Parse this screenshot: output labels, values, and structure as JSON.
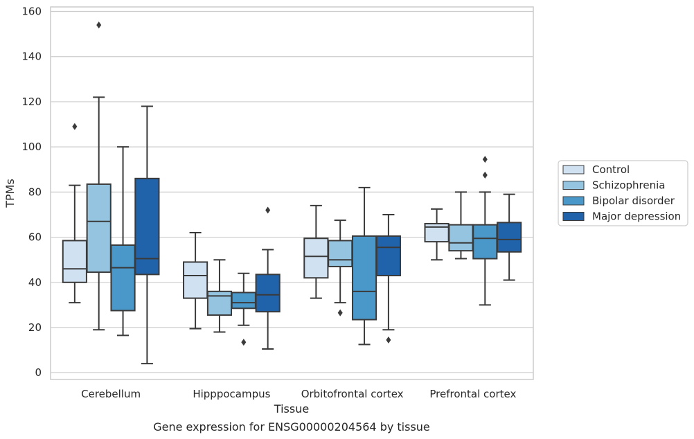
{
  "chart_data": {
    "type": "box",
    "title": "",
    "caption": "Gene expression for ENSG00000204564 by tissue",
    "xlabel": "Tissue",
    "ylabel": "TPMs",
    "ylim": [
      -3,
      162
    ],
    "yticks": [
      0,
      20,
      40,
      60,
      80,
      100,
      120,
      140,
      160
    ],
    "grid": "horizontal",
    "legend_position": "right",
    "categories": [
      "Cerebellum",
      "Hipppocampus",
      "Orbitofrontal cortex",
      "Prefrontal cortex"
    ],
    "series": [
      {
        "name": "Control",
        "color": "#d0e1f2",
        "boxes": [
          {
            "whislo": 31,
            "q1": 40,
            "med": 46,
            "q3": 58.5,
            "whishi": 83,
            "fliers": [
              109
            ]
          },
          {
            "whislo": 19.5,
            "q1": 33,
            "med": 43,
            "q3": 49,
            "whishi": 62,
            "fliers": []
          },
          {
            "whislo": 33,
            "q1": 42,
            "med": 51.5,
            "q3": 59.5,
            "whishi": 74,
            "fliers": []
          },
          {
            "whislo": 50,
            "q1": 58,
            "med": 64.5,
            "q3": 66,
            "whishi": 72.5,
            "fliers": []
          }
        ]
      },
      {
        "name": "Schizophrenia",
        "color": "#94c4df",
        "boxes": [
          {
            "whislo": 19,
            "q1": 44.5,
            "med": 67,
            "q3": 83.5,
            "whishi": 122,
            "fliers": [
              154
            ]
          },
          {
            "whislo": 18,
            "q1": 25.5,
            "med": 34,
            "q3": 36,
            "whishi": 50,
            "fliers": []
          },
          {
            "whislo": 31,
            "q1": 47,
            "med": 50,
            "q3": 58.5,
            "whishi": 67.5,
            "fliers": [
              26.5
            ]
          },
          {
            "whislo": 50.5,
            "q1": 54,
            "med": 57.5,
            "q3": 65.5,
            "whishi": 80,
            "fliers": []
          }
        ]
      },
      {
        "name": "Bipolar disorder",
        "color": "#4a98c9",
        "boxes": [
          {
            "whislo": 16.5,
            "q1": 27.5,
            "med": 46.5,
            "q3": 56.5,
            "whishi": 100,
            "fliers": []
          },
          {
            "whislo": 21,
            "q1": 28.5,
            "med": 31,
            "q3": 35.5,
            "whishi": 44,
            "fliers": [
              13.5
            ]
          },
          {
            "whislo": 12.5,
            "q1": 23.5,
            "med": 36,
            "q3": 60.5,
            "whishi": 82,
            "fliers": []
          },
          {
            "whislo": 30,
            "q1": 50.5,
            "med": 59.5,
            "q3": 65.5,
            "whishi": 80,
            "fliers": [
              87.5,
              94.5
            ]
          }
        ]
      },
      {
        "name": "Major depression",
        "color": "#2163aa",
        "boxes": [
          {
            "whislo": 4,
            "q1": 43.5,
            "med": 50.5,
            "q3": 86,
            "whishi": 118,
            "fliers": []
          },
          {
            "whislo": 10.5,
            "q1": 27,
            "med": 34.5,
            "q3": 43.5,
            "whishi": 54.5,
            "fliers": [
              72
            ]
          },
          {
            "whislo": 19,
            "q1": 43,
            "med": 55.5,
            "q3": 60.5,
            "whishi": 70,
            "fliers": [
              14.5
            ]
          },
          {
            "whislo": 41,
            "q1": 53.5,
            "med": 59,
            "q3": 66.5,
            "whishi": 79,
            "fliers": []
          }
        ]
      }
    ]
  }
}
